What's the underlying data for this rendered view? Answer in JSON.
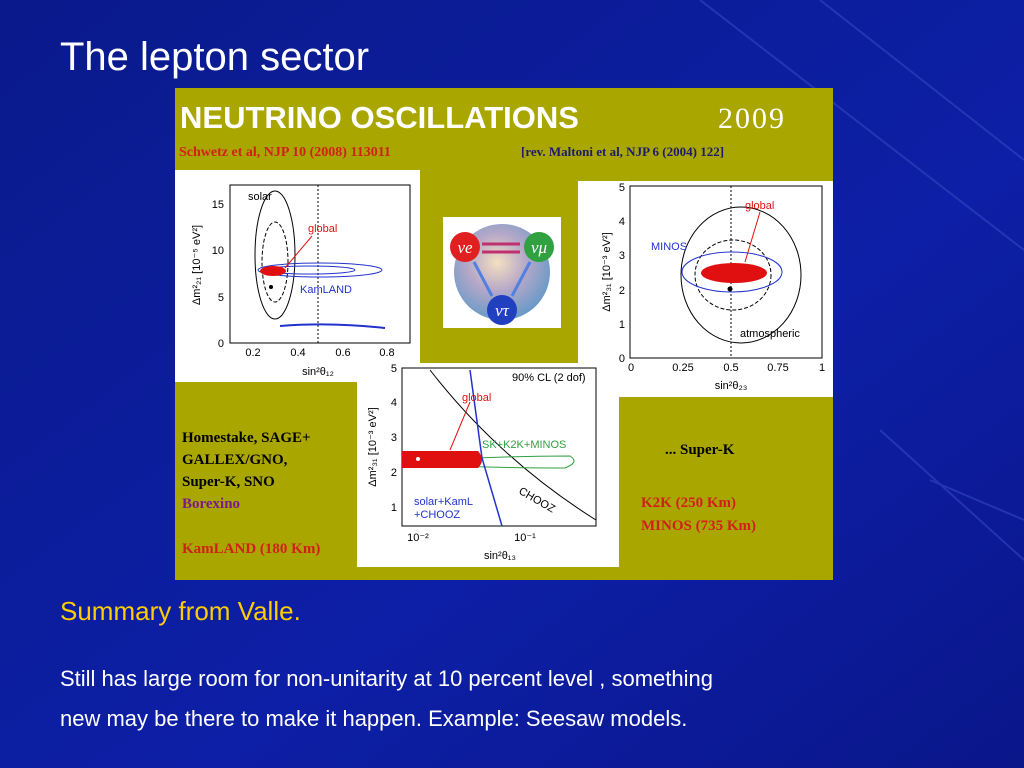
{
  "slide": {
    "title": "The lepton sector",
    "figure": {
      "heading": "NEUTRINO OSCILLATIONS",
      "year": "2009",
      "reference": "Schwetz et al, NJP 10 (2008) 113011",
      "review": "[rev. Maltoni et al, NJP 6 (2004) 122]",
      "solar_plot": {
        "labels": [
          "solar",
          "global",
          "KamLAND"
        ],
        "xticks": [
          "0.2",
          "0.4",
          "0.6",
          "0.8"
        ],
        "yticks": [
          "0",
          "5",
          "10",
          "15"
        ],
        "xlabel": "sin²θ₁₂",
        "ylabel": "Δm²₂₁ [10⁻⁵ eV²]"
      },
      "atmospheric_plot": {
        "labels": [
          "global",
          "MINOS",
          "atmospheric"
        ],
        "xticks": [
          "0",
          "0.25",
          "0.5",
          "0.75",
          "1"
        ],
        "yticks": [
          "0",
          "1",
          "2",
          "3",
          "4",
          "5"
        ],
        "xlabel": "sin²θ₂₃",
        "ylabel": "Δm²₃₁ [10⁻³ eV²]"
      },
      "reactor_plot": {
        "labels": [
          "90% CL (2 dof)",
          "global",
          "SK+K2K+MINOS",
          "CHOOZ",
          "solar+KamL",
          "+CHOOZ"
        ],
        "xticks": [
          "10⁻²",
          "10⁻¹"
        ],
        "yticks": [
          "1",
          "2",
          "3",
          "4",
          "5"
        ],
        "xlabel": "sin²θ₁₃",
        "ylabel": "Δm²₃₁ [10⁻³ eV²]"
      },
      "flavors": [
        "νe",
        "νμ",
        "ντ"
      ],
      "solar_experiments": [
        "Homestake, SAGE+",
        "GALLEX/GNO,",
        "Super-K, SNO",
        "Borexino",
        "KamLAND (180 Km)"
      ],
      "atmospheric_experiments": [
        "... Super-K",
        "K2K (250 Km)",
        "MINOS (735 Km)"
      ]
    },
    "summary": "Summary from Valle.",
    "body": [
      "Still has large room for non-unitarity at  10 percent level , something",
      "new may be there to make it happen. Example: Seesaw models."
    ]
  }
}
